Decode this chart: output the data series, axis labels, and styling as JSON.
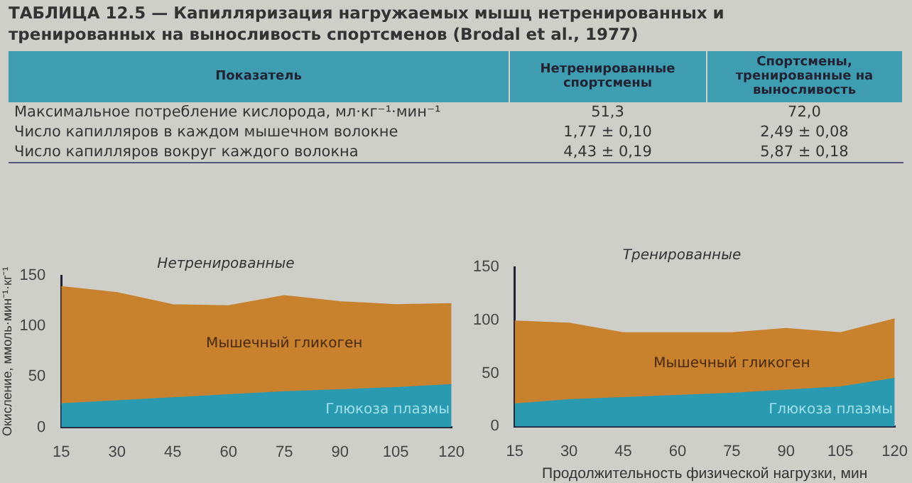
{
  "chart_data": [
    {
      "type": "other",
      "title": "ТАБЛИЦА 12.5 — Капилляризация нагружаемых мышц нетренированных и тренированных на выносливость спортсменов (Brodal et al., 1977)",
      "annotations": [
        "Показатель",
        "Нетренированные спортсмены",
        "Спортсмены, тренированные на выносливость",
        "Максимальное потребление кислорода, мл·кг⁻¹·мин⁻¹",
        "51,3",
        "72,0",
        "Число капилляров в каждом мышечном волокне",
        "1,77 ± 0,10",
        "2,49 ± 0,08",
        "Число капилляров вокруг каждого волокна",
        "4,43 ± 0,19",
        "5,87 ± 0,18"
      ]
    },
    {
      "type": "area",
      "title": "Нетренированные",
      "ylabel": "Окисление, ммоль·мин⁻¹·кг⁻¹",
      "stacked": true,
      "x": [
        15,
        30,
        45,
        60,
        75,
        90,
        105,
        120
      ],
      "xlim": [
        15,
        120
      ],
      "xticks": [
        15,
        30,
        45,
        60,
        75,
        90,
        105,
        120
      ],
      "ylim": [
        0,
        150
      ],
      "yticks": [
        0,
        50,
        100,
        150
      ],
      "series": [
        {
          "name": "Глюкоза плазмы",
          "color": "#2a9ab0",
          "values": [
            23,
            26,
            29,
            32,
            35,
            37,
            39,
            42
          ]
        },
        {
          "name": "Мышечный гликоген",
          "color": "#c8822e",
          "values": [
            116,
            107,
            92,
            88,
            95,
            87,
            82,
            80
          ]
        }
      ]
    },
    {
      "type": "area",
      "title": "Тренированные",
      "xlabel": "Продолжительность физической нагрузки, мин",
      "stacked": true,
      "x": [
        15,
        30,
        45,
        60,
        75,
        90,
        105,
        120
      ],
      "xlim": [
        15,
        120
      ],
      "xticks": [
        15,
        30,
        45,
        60,
        75,
        90,
        105,
        120
      ],
      "ylim": [
        0,
        150
      ],
      "yticks": [
        0,
        50,
        100,
        150
      ],
      "series": [
        {
          "name": "Глюкоза плазмы",
          "color": "#2a9ab0",
          "values": [
            21,
            25,
            27,
            29,
            31,
            34,
            37,
            45
          ]
        },
        {
          "name": "Мышечный гликоген",
          "color": "#c8822e",
          "values": [
            78,
            72,
            61,
            59,
            57,
            58,
            51,
            56
          ]
        }
      ]
    }
  ]
}
